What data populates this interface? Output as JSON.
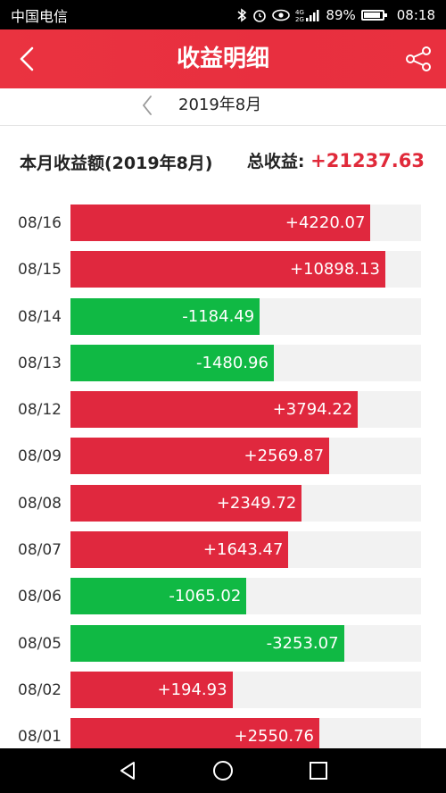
{
  "status_bar": {
    "carrier": "中国电信",
    "battery_text": "89%",
    "battery_level": 0.89,
    "time": "08:18",
    "icons": [
      "bluetooth-icon",
      "alarm-icon",
      "eye-icon",
      "network-4g-icon",
      "battery-icon"
    ]
  },
  "header": {
    "title": "收益明细",
    "back_icon": "chevron-left-icon",
    "share_icon": "share-icon"
  },
  "month_selector": {
    "label": "2019年8月",
    "prev_icon": "chevron-left-icon"
  },
  "summary": {
    "month_total_label": "本月收益额(2019年8月)",
    "total_label": "总收益:",
    "total_value": "+21237.63"
  },
  "colors": {
    "gain": "#e0283e",
    "loss": "#10b944",
    "track": "#f2f2f2",
    "accent": "#e9303f"
  },
  "chart_data": {
    "type": "bar",
    "orientation": "horizontal",
    "categories": [
      "08/16",
      "08/15",
      "08/14",
      "08/13",
      "08/12",
      "08/09",
      "08/08",
      "08/07",
      "08/06",
      "08/05",
      "08/02",
      "08/01"
    ],
    "values": [
      4220.07,
      10898.13,
      -1184.49,
      -1480.96,
      3794.22,
      2569.87,
      2349.72,
      1643.47,
      -1065.02,
      -3253.07,
      194.93,
      2550.76
    ],
    "labels": [
      "+4220.07",
      "+10898.13",
      "-1184.49",
      "-1480.96",
      "+3794.22",
      "+2569.87",
      "+2349.72",
      "+1643.47",
      "-1065.02",
      "-3253.07",
      "+194.93",
      "+2550.76"
    ],
    "bar_fraction": [
      0.856,
      0.898,
      0.54,
      0.58,
      0.82,
      0.738,
      0.66,
      0.622,
      0.502,
      0.78,
      0.462,
      0.71
    ]
  }
}
